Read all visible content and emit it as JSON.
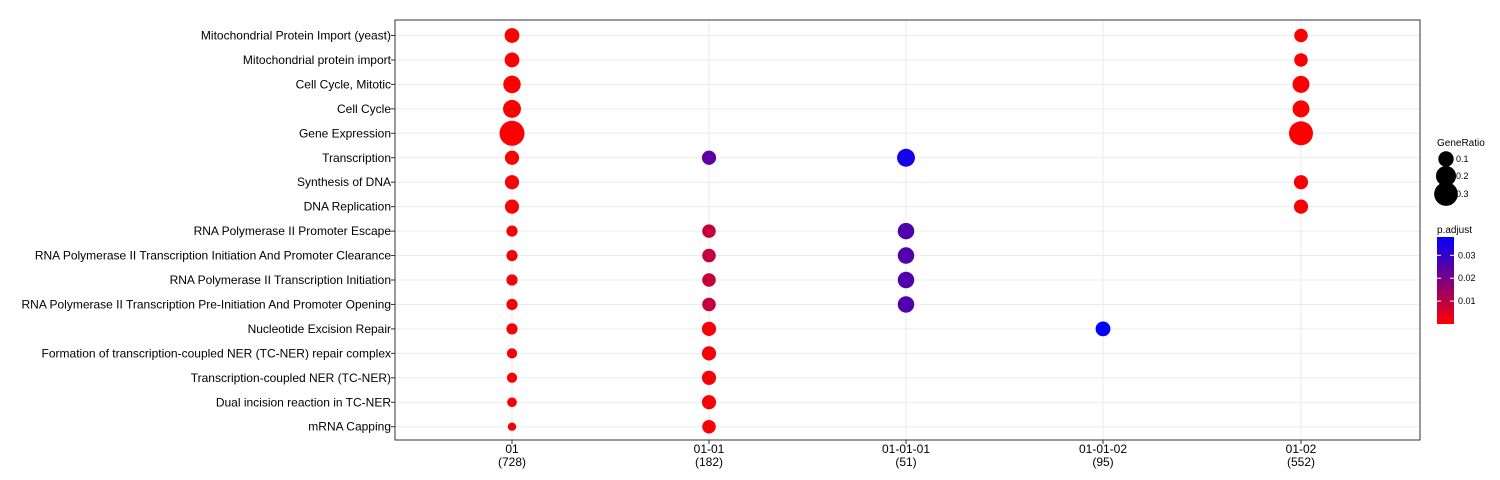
{
  "chart_data": {
    "type": "scatter",
    "title": "",
    "xlabel": "",
    "ylabel": "",
    "x_categories": [
      {
        "label": "01",
        "count": "(728)"
      },
      {
        "label": "01-01",
        "count": "(182)"
      },
      {
        "label": "01-01-01",
        "count": "(51)"
      },
      {
        "label": "01-01-02",
        "count": "(95)"
      },
      {
        "label": "01-02",
        "count": "(552)"
      }
    ],
    "y_categories": [
      "Mitochondrial Protein Import (yeast)",
      "Mitochondrial protein import",
      "Cell Cycle, Mitotic",
      "Cell Cycle",
      "Gene Expression",
      "Transcription",
      "Synthesis of DNA",
      "DNA Replication",
      "RNA Polymerase II Promoter Escape",
      "RNA Polymerase II Transcription Initiation And Promoter Clearance",
      "RNA Polymerase II Transcription Initiation",
      "RNA Polymerase II Transcription Pre-Initiation And Promoter Opening",
      "Nucleotide Excision Repair",
      "Formation of transcription-coupled NER (TC-NER) repair complex",
      "Transcription-coupled NER (TC-NER)",
      "Dual incision reaction in TC-NER",
      "mRNA Capping"
    ],
    "points": [
      {
        "x": "01",
        "y": "Mitochondrial Protein Import (yeast)",
        "gene_ratio": 0.09,
        "p_adjust": 0.0001
      },
      {
        "x": "01",
        "y": "Mitochondrial protein import",
        "gene_ratio": 0.09,
        "p_adjust": 0.0001
      },
      {
        "x": "01",
        "y": "Cell Cycle, Mitotic",
        "gene_ratio": 0.14,
        "p_adjust": 0.0001
      },
      {
        "x": "01",
        "y": "Cell Cycle",
        "gene_ratio": 0.15,
        "p_adjust": 0.0001
      },
      {
        "x": "01",
        "y": "Gene Expression",
        "gene_ratio": 0.34,
        "p_adjust": 0.0001
      },
      {
        "x": "01",
        "y": "Transcription",
        "gene_ratio": 0.08,
        "p_adjust": 0.0005
      },
      {
        "x": "01",
        "y": "Synthesis of DNA",
        "gene_ratio": 0.08,
        "p_adjust": 0.0005
      },
      {
        "x": "01",
        "y": "DNA Replication",
        "gene_ratio": 0.08,
        "p_adjust": 0.0005
      },
      {
        "x": "01",
        "y": "RNA Polymerase II Promoter Escape",
        "gene_ratio": 0.04,
        "p_adjust": 0.001
      },
      {
        "x": "01",
        "y": "RNA Polymerase II Transcription Initiation And Promoter Clearance",
        "gene_ratio": 0.04,
        "p_adjust": 0.001
      },
      {
        "x": "01",
        "y": "RNA Polymerase II Transcription Initiation",
        "gene_ratio": 0.04,
        "p_adjust": 0.001
      },
      {
        "x": "01",
        "y": "RNA Polymerase II Transcription Pre-Initiation And Promoter Opening",
        "gene_ratio": 0.04,
        "p_adjust": 0.001
      },
      {
        "x": "01",
        "y": "Nucleotide Excision Repair",
        "gene_ratio": 0.04,
        "p_adjust": 0.001
      },
      {
        "x": "01",
        "y": "Formation of transcription-coupled NER (TC-NER) repair complex",
        "gene_ratio": 0.03,
        "p_adjust": 0.001
      },
      {
        "x": "01",
        "y": "Transcription-coupled NER (TC-NER)",
        "gene_ratio": 0.03,
        "p_adjust": 0.001
      },
      {
        "x": "01",
        "y": "Dual incision reaction in TC-NER",
        "gene_ratio": 0.025,
        "p_adjust": 0.001
      },
      {
        "x": "01",
        "y": "mRNA Capping",
        "gene_ratio": 0.015,
        "p_adjust": 0.001
      },
      {
        "x": "01-01",
        "y": "Transcription",
        "gene_ratio": 0.08,
        "p_adjust": 0.024
      },
      {
        "x": "01-01",
        "y": "RNA Polymerase II Promoter Escape",
        "gene_ratio": 0.07,
        "p_adjust": 0.009
      },
      {
        "x": "01-01",
        "y": "RNA Polymerase II Transcription Initiation And Promoter Clearance",
        "gene_ratio": 0.07,
        "p_adjust": 0.009
      },
      {
        "x": "01-01",
        "y": "RNA Polymerase II Transcription Initiation",
        "gene_ratio": 0.07,
        "p_adjust": 0.009
      },
      {
        "x": "01-01",
        "y": "RNA Polymerase II Transcription Pre-Initiation And Promoter Opening",
        "gene_ratio": 0.07,
        "p_adjust": 0.009
      },
      {
        "x": "01-01",
        "y": "Nucleotide Excision Repair",
        "gene_ratio": 0.08,
        "p_adjust": 0.001
      },
      {
        "x": "01-01",
        "y": "Formation of transcription-coupled NER (TC-NER) repair complex",
        "gene_ratio": 0.08,
        "p_adjust": 0.001
      },
      {
        "x": "01-01",
        "y": "Transcription-coupled NER (TC-NER)",
        "gene_ratio": 0.08,
        "p_adjust": 0.001
      },
      {
        "x": "01-01",
        "y": "Dual incision reaction in TC-NER",
        "gene_ratio": 0.08,
        "p_adjust": 0.001
      },
      {
        "x": "01-01",
        "y": "mRNA Capping",
        "gene_ratio": 0.07,
        "p_adjust": 0.001
      },
      {
        "x": "01-01-01",
        "y": "Transcription",
        "gene_ratio": 0.15,
        "p_adjust": 0.035
      },
      {
        "x": "01-01-01",
        "y": "RNA Polymerase II Promoter Escape",
        "gene_ratio": 0.12,
        "p_adjust": 0.026
      },
      {
        "x": "01-01-01",
        "y": "RNA Polymerase II Transcription Initiation And Promoter Clearance",
        "gene_ratio": 0.12,
        "p_adjust": 0.026
      },
      {
        "x": "01-01-01",
        "y": "RNA Polymerase II Transcription Initiation",
        "gene_ratio": 0.12,
        "p_adjust": 0.026
      },
      {
        "x": "01-01-01",
        "y": "RNA Polymerase II Transcription Pre-Initiation And Promoter Opening",
        "gene_ratio": 0.12,
        "p_adjust": 0.026
      },
      {
        "x": "01-01-02",
        "y": "Nucleotide Excision Repair",
        "gene_ratio": 0.09,
        "p_adjust": 0.038
      },
      {
        "x": "01-02",
        "y": "Mitochondrial Protein Import (yeast)",
        "gene_ratio": 0.07,
        "p_adjust": 0.0008
      },
      {
        "x": "01-02",
        "y": "Mitochondrial protein import",
        "gene_ratio": 0.07,
        "p_adjust": 0.0008
      },
      {
        "x": "01-02",
        "y": "Cell Cycle, Mitotic",
        "gene_ratio": 0.13,
        "p_adjust": 0.0005
      },
      {
        "x": "01-02",
        "y": "Cell Cycle",
        "gene_ratio": 0.13,
        "p_adjust": 0.0005
      },
      {
        "x": "01-02",
        "y": "Gene Expression",
        "gene_ratio": 0.31,
        "p_adjust": 0.0001
      },
      {
        "x": "01-02",
        "y": "Synthesis of DNA",
        "gene_ratio": 0.08,
        "p_adjust": 0.0008
      },
      {
        "x": "01-02",
        "y": "DNA Replication",
        "gene_ratio": 0.08,
        "p_adjust": 0.0008
      }
    ],
    "size_legend": {
      "title": "GeneRatio",
      "entries": [
        {
          "label": "0.1",
          "value": 0.1
        },
        {
          "label": "0.2",
          "value": 0.2
        },
        {
          "label": "0.3",
          "value": 0.3
        }
      ]
    },
    "color_legend": {
      "title": "p.adjust",
      "range": [
        0,
        0.038
      ],
      "ticks": [
        {
          "label": "0.03",
          "value": 0.03
        },
        {
          "label": "0.02",
          "value": 0.02
        },
        {
          "label": "0.01",
          "value": 0.01
        }
      ],
      "low_color": "#ff0000",
      "high_color": "#0000ff"
    },
    "grid": true,
    "legend_position": "right"
  }
}
